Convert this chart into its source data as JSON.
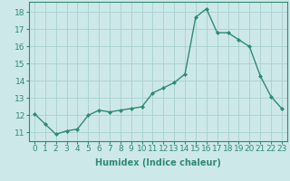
{
  "x": [
    0,
    1,
    2,
    3,
    4,
    5,
    6,
    7,
    8,
    9,
    10,
    11,
    12,
    13,
    14,
    15,
    16,
    17,
    18,
    19,
    20,
    21,
    22,
    23
  ],
  "y": [
    12.1,
    11.5,
    10.9,
    11.1,
    11.2,
    12.0,
    12.3,
    12.2,
    12.3,
    12.4,
    12.5,
    13.3,
    13.6,
    13.9,
    14.4,
    17.7,
    18.2,
    16.8,
    16.8,
    16.4,
    16.0,
    14.3,
    13.1,
    12.4
  ],
  "line_color": "#2e8b74",
  "marker": "D",
  "marker_size": 2,
  "bg_color": "#cde8e8",
  "grid_color": "#a8d0d0",
  "xlabel": "Humidex (Indice chaleur)",
  "ylabel_ticks": [
    11,
    12,
    13,
    14,
    15,
    16,
    17,
    18
  ],
  "xtick_labels": [
    "0",
    "1",
    "2",
    "3",
    "4",
    "5",
    "6",
    "7",
    "8",
    "9",
    "10",
    "11",
    "12",
    "13",
    "14",
    "15",
    "16",
    "17",
    "18",
    "19",
    "20",
    "21",
    "22",
    "23"
  ],
  "ylim": [
    10.5,
    18.6
  ],
  "xlim": [
    -0.5,
    23.5
  ],
  "xlabel_fontsize": 7,
  "tick_fontsize": 6.5,
  "line_width": 1.0
}
